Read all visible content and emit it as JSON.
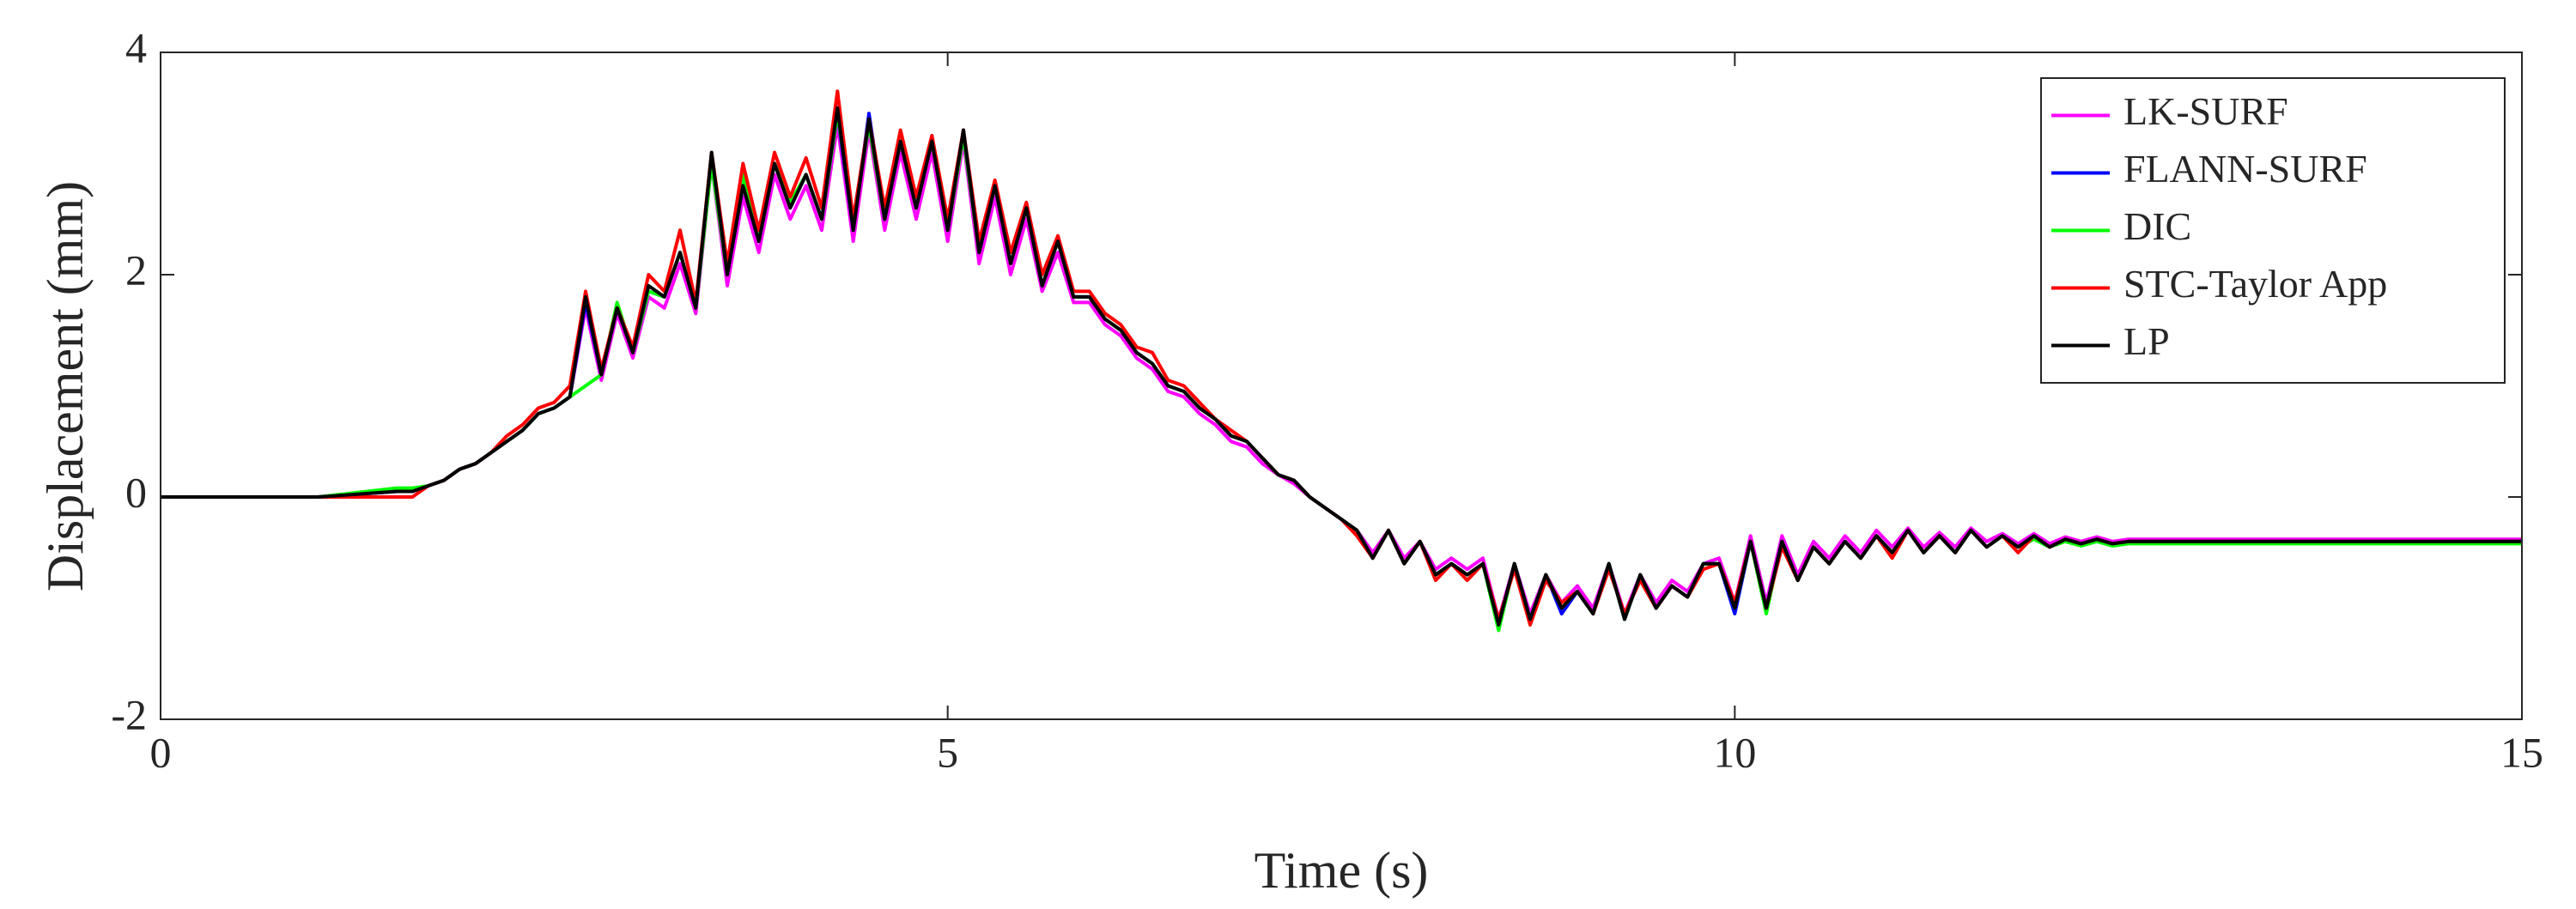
{
  "chart_data": {
    "type": "line",
    "xlabel": "Time (s)",
    "ylabel": "Displacement (mm)",
    "x": [
      0,
      0.5,
      1,
      1.5,
      1.6,
      1.7,
      1.8,
      1.9,
      2.0,
      2.1,
      2.2,
      2.3,
      2.4,
      2.5,
      2.6,
      2.7,
      2.8,
      2.9,
      3.0,
      3.1,
      3.2,
      3.3,
      3.4,
      3.5,
      3.6,
      3.7,
      3.8,
      3.9,
      4.0,
      4.1,
      4.2,
      4.3,
      4.4,
      4.5,
      4.6,
      4.7,
      4.8,
      4.9,
      5.0,
      5.1,
      5.2,
      5.3,
      5.4,
      5.5,
      5.6,
      5.7,
      5.8,
      5.9,
      6.0,
      6.1,
      6.2,
      6.3,
      6.4,
      6.5,
      6.6,
      6.7,
      6.8,
      6.9,
      7.0,
      7.1,
      7.2,
      7.3,
      7.4,
      7.5,
      7.6,
      7.7,
      7.8,
      7.9,
      8.0,
      8.1,
      8.2,
      8.3,
      8.4,
      8.5,
      8.6,
      8.7,
      8.8,
      8.9,
      9.0,
      9.1,
      9.2,
      9.3,
      9.4,
      9.5,
      9.6,
      9.7,
      9.8,
      9.9,
      10.0,
      10.1,
      10.2,
      10.3,
      10.4,
      10.5,
      10.6,
      10.7,
      10.8,
      10.9,
      11.0,
      11.1,
      11.2,
      11.3,
      11.4,
      11.5,
      11.6,
      11.7,
      11.8,
      11.9,
      12.0,
      12.1,
      12.2,
      12.3,
      12.4,
      12.5,
      13,
      13.5,
      14,
      14.5,
      15
    ],
    "series": [
      {
        "name": "LK-SURF",
        "color": "#ff00ff",
        "values": [
          0,
          0,
          0,
          0.05,
          0.05,
          0.1,
          0.15,
          0.25,
          0.3,
          0.4,
          0.5,
          0.6,
          0.75,
          0.8,
          0.9,
          1.7,
          1.05,
          1.65,
          1.25,
          1.8,
          1.7,
          2.1,
          1.65,
          3.0,
          1.9,
          2.7,
          2.2,
          2.9,
          2.5,
          2.8,
          2.4,
          3.35,
          2.3,
          3.3,
          2.4,
          3.1,
          2.5,
          3.1,
          2.3,
          3.2,
          2.1,
          2.7,
          2.0,
          2.5,
          1.85,
          2.2,
          1.75,
          1.75,
          1.55,
          1.45,
          1.25,
          1.15,
          0.95,
          0.9,
          0.75,
          0.65,
          0.5,
          0.45,
          0.3,
          0.2,
          0.12,
          0.0,
          -0.1,
          -0.2,
          -0.3,
          -0.5,
          -0.3,
          -0.55,
          -0.4,
          -0.65,
          -0.55,
          -0.65,
          -0.55,
          -1.1,
          -0.6,
          -1.05,
          -0.7,
          -0.95,
          -0.8,
          -1.0,
          -0.6,
          -1.05,
          -0.7,
          -0.95,
          -0.75,
          -0.85,
          -0.6,
          -0.55,
          -0.95,
          -0.35,
          -0.95,
          -0.35,
          -0.7,
          -0.4,
          -0.55,
          -0.35,
          -0.5,
          -0.3,
          -0.45,
          -0.28,
          -0.45,
          -0.32,
          -0.45,
          -0.28,
          -0.4,
          -0.33,
          -0.42,
          -0.33,
          -0.42,
          -0.36,
          -0.4,
          -0.36,
          -0.4,
          -0.38,
          -0.38,
          -0.38,
          -0.38,
          -0.38,
          -0.38
        ]
      },
      {
        "name": "FLANN-SURF",
        "color": "#0000ff",
        "values": [
          0,
          0,
          0,
          0.05,
          0.05,
          0.1,
          0.15,
          0.25,
          0.3,
          0.4,
          0.5,
          0.6,
          0.75,
          0.8,
          0.9,
          1.75,
          1.1,
          1.7,
          1.3,
          1.85,
          1.8,
          2.2,
          1.7,
          3.05,
          2.0,
          2.8,
          2.3,
          3.0,
          2.6,
          2.9,
          2.5,
          3.45,
          2.4,
          3.45,
          2.5,
          3.2,
          2.6,
          3.25,
          2.4,
          3.3,
          2.2,
          2.8,
          2.1,
          2.6,
          1.9,
          2.3,
          1.8,
          1.8,
          1.6,
          1.5,
          1.3,
          1.2,
          1.0,
          0.95,
          0.8,
          0.7,
          0.55,
          0.5,
          0.35,
          0.2,
          0.15,
          0.0,
          -0.1,
          -0.2,
          -0.3,
          -0.55,
          -0.3,
          -0.6,
          -0.4,
          -0.7,
          -0.6,
          -0.7,
          -0.6,
          -1.15,
          -0.6,
          -1.1,
          -0.7,
          -1.05,
          -0.85,
          -1.05,
          -0.6,
          -1.1,
          -0.7,
          -1.0,
          -0.8,
          -0.9,
          -0.6,
          -0.6,
          -1.05,
          -0.4,
          -1.0,
          -0.4,
          -0.75,
          -0.45,
          -0.6,
          -0.4,
          -0.55,
          -0.35,
          -0.5,
          -0.3,
          -0.5,
          -0.35,
          -0.5,
          -0.3,
          -0.45,
          -0.35,
          -0.45,
          -0.35,
          -0.45,
          -0.38,
          -0.42,
          -0.38,
          -0.42,
          -0.4,
          -0.4,
          -0.4,
          -0.4,
          -0.4,
          -0.4
        ]
      },
      {
        "name": "DIC",
        "color": "#00ff00",
        "values": [
          0,
          0,
          0,
          0.08,
          0.08,
          0.1,
          0.15,
          0.25,
          0.3,
          0.4,
          0.5,
          0.6,
          0.75,
          0.8,
          0.9,
          1.0,
          1.1,
          1.75,
          1.3,
          1.85,
          1.8,
          2.2,
          1.7,
          3.0,
          2.0,
          2.9,
          2.3,
          3.0,
          2.65,
          2.9,
          2.5,
          3.45,
          2.5,
          3.35,
          2.5,
          3.2,
          2.6,
          3.2,
          2.4,
          3.25,
          2.2,
          2.8,
          2.1,
          2.6,
          1.9,
          2.3,
          1.8,
          1.8,
          1.6,
          1.5,
          1.3,
          1.2,
          1.0,
          0.95,
          0.8,
          0.7,
          0.55,
          0.5,
          0.35,
          0.2,
          0.15,
          0.0,
          -0.1,
          -0.2,
          -0.3,
          -0.55,
          -0.3,
          -0.6,
          -0.4,
          -0.7,
          -0.6,
          -0.7,
          -0.6,
          -1.2,
          -0.6,
          -1.1,
          -0.7,
          -1.0,
          -0.85,
          -1.05,
          -0.6,
          -1.1,
          -0.7,
          -1.0,
          -0.8,
          -0.9,
          -0.6,
          -0.6,
          -1.0,
          -0.4,
          -1.05,
          -0.4,
          -0.75,
          -0.45,
          -0.6,
          -0.4,
          -0.55,
          -0.35,
          -0.5,
          -0.3,
          -0.5,
          -0.35,
          -0.5,
          -0.3,
          -0.45,
          -0.35,
          -0.45,
          -0.38,
          -0.45,
          -0.4,
          -0.44,
          -0.4,
          -0.44,
          -0.42,
          -0.42,
          -0.42,
          -0.42,
          -0.42,
          -0.42
        ]
      },
      {
        "name": "STC-Taylor App",
        "color": "#ff0000",
        "values": [
          0,
          0,
          0,
          0,
          0,
          0.1,
          0.15,
          0.25,
          0.3,
          0.4,
          0.55,
          0.65,
          0.8,
          0.85,
          1.0,
          1.85,
          1.15,
          1.7,
          1.35,
          2.0,
          1.85,
          2.4,
          1.75,
          3.1,
          2.1,
          3.0,
          2.4,
          3.1,
          2.7,
          3.05,
          2.6,
          3.65,
          2.5,
          3.4,
          2.6,
          3.3,
          2.7,
          3.25,
          2.5,
          3.3,
          2.3,
          2.85,
          2.2,
          2.65,
          2.0,
          2.35,
          1.85,
          1.85,
          1.65,
          1.55,
          1.35,
          1.3,
          1.05,
          1.0,
          0.85,
          0.7,
          0.6,
          0.5,
          0.35,
          0.2,
          0.15,
          0.0,
          -0.1,
          -0.2,
          -0.35,
          -0.55,
          -0.3,
          -0.6,
          -0.4,
          -0.75,
          -0.6,
          -0.75,
          -0.6,
          -1.1,
          -0.65,
          -1.15,
          -0.75,
          -0.95,
          -0.85,
          -1.05,
          -0.65,
          -1.05,
          -0.75,
          -1.0,
          -0.8,
          -0.9,
          -0.65,
          -0.6,
          -0.95,
          -0.4,
          -1.0,
          -0.45,
          -0.75,
          -0.45,
          -0.6,
          -0.4,
          -0.55,
          -0.35,
          -0.55,
          -0.3,
          -0.5,
          -0.35,
          -0.5,
          -0.3,
          -0.45,
          -0.35,
          -0.5,
          -0.35,
          -0.45,
          -0.38,
          -0.42,
          -0.38,
          -0.42,
          -0.4,
          -0.4,
          -0.4,
          -0.4,
          -0.4,
          -0.4
        ]
      },
      {
        "name": "LP",
        "color": "#000000",
        "values": [
          0,
          0,
          0,
          0.05,
          0.05,
          0.1,
          0.15,
          0.25,
          0.3,
          0.4,
          0.5,
          0.6,
          0.75,
          0.8,
          0.9,
          1.8,
          1.1,
          1.7,
          1.3,
          1.9,
          1.8,
          2.2,
          1.7,
          3.1,
          2.0,
          2.8,
          2.3,
          3.0,
          2.6,
          2.9,
          2.5,
          3.5,
          2.4,
          3.4,
          2.5,
          3.2,
          2.6,
          3.2,
          2.4,
          3.3,
          2.2,
          2.8,
          2.1,
          2.6,
          1.9,
          2.3,
          1.8,
          1.8,
          1.6,
          1.5,
          1.3,
          1.2,
          1.0,
          0.95,
          0.8,
          0.7,
          0.55,
          0.5,
          0.35,
          0.2,
          0.15,
          0.0,
          -0.1,
          -0.2,
          -0.3,
          -0.55,
          -0.3,
          -0.6,
          -0.4,
          -0.7,
          -0.6,
          -0.7,
          -0.6,
          -1.15,
          -0.6,
          -1.1,
          -0.7,
          -1.0,
          -0.85,
          -1.05,
          -0.6,
          -1.1,
          -0.7,
          -1.0,
          -0.8,
          -0.9,
          -0.6,
          -0.6,
          -1.0,
          -0.4,
          -1.0,
          -0.4,
          -0.75,
          -0.45,
          -0.6,
          -0.4,
          -0.55,
          -0.35,
          -0.5,
          -0.3,
          -0.5,
          -0.35,
          -0.5,
          -0.3,
          -0.45,
          -0.35,
          -0.45,
          -0.35,
          -0.45,
          -0.38,
          -0.42,
          -0.38,
          -0.42,
          -0.4,
          -0.4,
          -0.4,
          -0.4,
          -0.4,
          -0.4
        ]
      }
    ],
    "xlim": [
      0,
      15
    ],
    "xticks": [
      0,
      5,
      10,
      15
    ],
    "ylim": [
      -2,
      4
    ],
    "yticks": [
      -2,
      0,
      2,
      4
    ],
    "legend": "upper right",
    "grid": false
  }
}
